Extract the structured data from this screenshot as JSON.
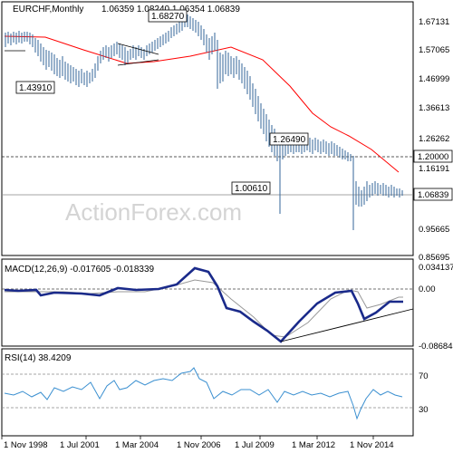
{
  "chart_data": [
    {
      "type": "ohlc",
      "symbol": "EURCHF",
      "timeframe": "Monthly",
      "title": "EURCHF,Monthly",
      "last_bar_text": "1.06359 1.08240 1.06354 1.06839",
      "watermark": "ActionForex.com",
      "y_ticks": [
        "1.67131",
        "1.57065",
        "1.46999",
        "1.36613",
        "1.26262",
        "1.16191",
        "0.95665",
        "0.85695"
      ],
      "ylim": [
        0.85695,
        1.71
      ],
      "horizontal_lines": [
        {
          "value": 1.2,
          "label": "1.20000",
          "style": "dashed"
        },
        {
          "value": 1.06839,
          "label": "1.06839",
          "style": "solid"
        }
      ],
      "annotations": [
        {
          "text": "1.68270",
          "value": 1.6827
        },
        {
          "text": "1.43910",
          "value": 1.4391
        },
        {
          "text": "1.26490",
          "value": 1.2649
        },
        {
          "text": "1.00610",
          "value": 1.0061
        }
      ],
      "series": [
        {
          "name": "price",
          "x": [
            "1998-01",
            "1998-06",
            "1998-11",
            "1999-04",
            "1999-09",
            "2000-02",
            "2000-07",
            "2000-12",
            "2001-05",
            "2001-10",
            "2002-03",
            "2002-08",
            "2003-01",
            "2003-06",
            "2003-11",
            "2004-04",
            "2004-09",
            "2005-02",
            "2005-07",
            "2005-12",
            "2006-05",
            "2006-10",
            "2007-03",
            "2007-08",
            "2008-01",
            "2008-06",
            "2008-11",
            "2009-04",
            "2009-09",
            "2010-02",
            "2010-07",
            "2010-12",
            "2011-05",
            "2011-08",
            "2011-12",
            "2012-05",
            "2012-10",
            "2013-03",
            "2013-08",
            "2014-01",
            "2014-06",
            "2014-11",
            "2015-01",
            "2015-05",
            "2015-10",
            "2016-03",
            "2016-08",
            "2016-12"
          ],
          "values": [
            1.62,
            1.61,
            1.62,
            1.61,
            1.6,
            1.56,
            1.54,
            1.52,
            1.5,
            1.46,
            1.47,
            1.46,
            1.47,
            1.53,
            1.55,
            1.55,
            1.54,
            1.55,
            1.55,
            1.56,
            1.58,
            1.59,
            1.64,
            1.65,
            1.61,
            1.6,
            1.53,
            1.51,
            1.51,
            1.45,
            1.38,
            1.28,
            1.26,
            1.12,
            1.22,
            1.2,
            1.21,
            1.23,
            1.23,
            1.22,
            1.21,
            1.2,
            1.06,
            1.05,
            1.08,
            1.09,
            1.08,
            1.07
          ]
        },
        {
          "name": "ma",
          "x": [
            "1998-01",
            "1999-01",
            "2000-01",
            "2001-01",
            "2002-01",
            "2003-01",
            "2004-01",
            "2005-01",
            "2006-01",
            "2007-01",
            "2008-01",
            "2009-01",
            "2010-01",
            "2011-01",
            "2012-01",
            "2013-01",
            "2014-01",
            "2015-01",
            "2016-01",
            "2016-12"
          ],
          "values": [
            1.605,
            1.605,
            1.595,
            1.56,
            1.52,
            1.49,
            1.52,
            1.54,
            1.55,
            1.565,
            1.6,
            1.56,
            1.44,
            1.32,
            1.27,
            1.24,
            1.22,
            1.19,
            1.16,
            1.14
          ]
        }
      ]
    },
    {
      "type": "line",
      "title": "MACD(12,26,9) -0.017605 -0.018339",
      "y_ticks": [
        "0.034137",
        "0.00",
        "-0.086845"
      ],
      "ylim": [
        -0.086845,
        0.034137
      ],
      "series": [
        {
          "name": "macd",
          "x": [
            "1998-01",
            "1999-01",
            "2000-01",
            "2001-01",
            "2002-01",
            "2003-01",
            "2004-01",
            "2005-01",
            "2006-01",
            "2006-10",
            "2007-06",
            "2008-01",
            "2008-06",
            "2009-01",
            "2010-01",
            "2011-01",
            "2011-08",
            "2012-01",
            "2013-01",
            "2014-01",
            "2014-06",
            "2015-01",
            "2015-06",
            "2016-01",
            "2016-12"
          ],
          "values": [
            -0.002,
            -0.004,
            -0.002,
            -0.005,
            -0.003,
            -0.01,
            0.003,
            0.004,
            0.012,
            0.018,
            0.014,
            0.006,
            -0.02,
            -0.045,
            -0.06,
            -0.072,
            -0.086,
            -0.07,
            -0.04,
            -0.015,
            -0.005,
            -0.004,
            -0.04,
            -0.02,
            -0.017
          ]
        },
        {
          "name": "signal",
          "x": [
            "1998-01",
            "2000-01",
            "2002-01",
            "2004-01",
            "2006-01",
            "2007-06",
            "2009-01",
            "2011-01",
            "2012-01",
            "2013-06",
            "2014-06",
            "2015-01",
            "2015-06",
            "2016-01",
            "2016-12"
          ],
          "values": [
            -0.002,
            -0.003,
            -0.005,
            -0.002,
            0.01,
            0.015,
            -0.035,
            -0.07,
            -0.075,
            -0.04,
            -0.01,
            -0.005,
            -0.025,
            -0.02,
            -0.018
          ]
        }
      ]
    },
    {
      "type": "line",
      "title": "RSI(14) 38.4209",
      "y_ticks": [
        "70",
        "30"
      ],
      "ylim": [
        0,
        100
      ],
      "x_ticks": [
        "1 Nov 1998",
        "1 Jul 2001",
        "1 Mar 2004",
        "1 Nov 2006",
        "1 Jul 2009",
        "1 Mar 2012",
        "1 Nov 2014"
      ],
      "series": [
        {
          "name": "rsi",
          "x": [
            "1998-01",
            "1998-08",
            "1999-03",
            "1999-10",
            "2000-05",
            "2000-12",
            "2001-07",
            "2002-02",
            "2002-09",
            "2003-04",
            "2003-11",
            "2004-06",
            "2005-01",
            "2005-08",
            "2006-03",
            "2006-10",
            "2007-05",
            "2007-12",
            "2008-07",
            "2009-02",
            "2009-09",
            "2010-04",
            "2010-11",
            "2011-06",
            "2011-12",
            "2012-07",
            "2013-02",
            "2013-09",
            "2014-04",
            "2014-11",
            "2015-01",
            "2015-06",
            "2016-01",
            "2016-06",
            "2016-12"
          ],
          "values": [
            46,
            44,
            50,
            42,
            48,
            38,
            55,
            48,
            58,
            52,
            64,
            55,
            62,
            58,
            70,
            76,
            66,
            60,
            45,
            40,
            44,
            36,
            30,
            32,
            48,
            38,
            44,
            40,
            46,
            38,
            14,
            38,
            50,
            44,
            38
          ]
        }
      ]
    }
  ]
}
